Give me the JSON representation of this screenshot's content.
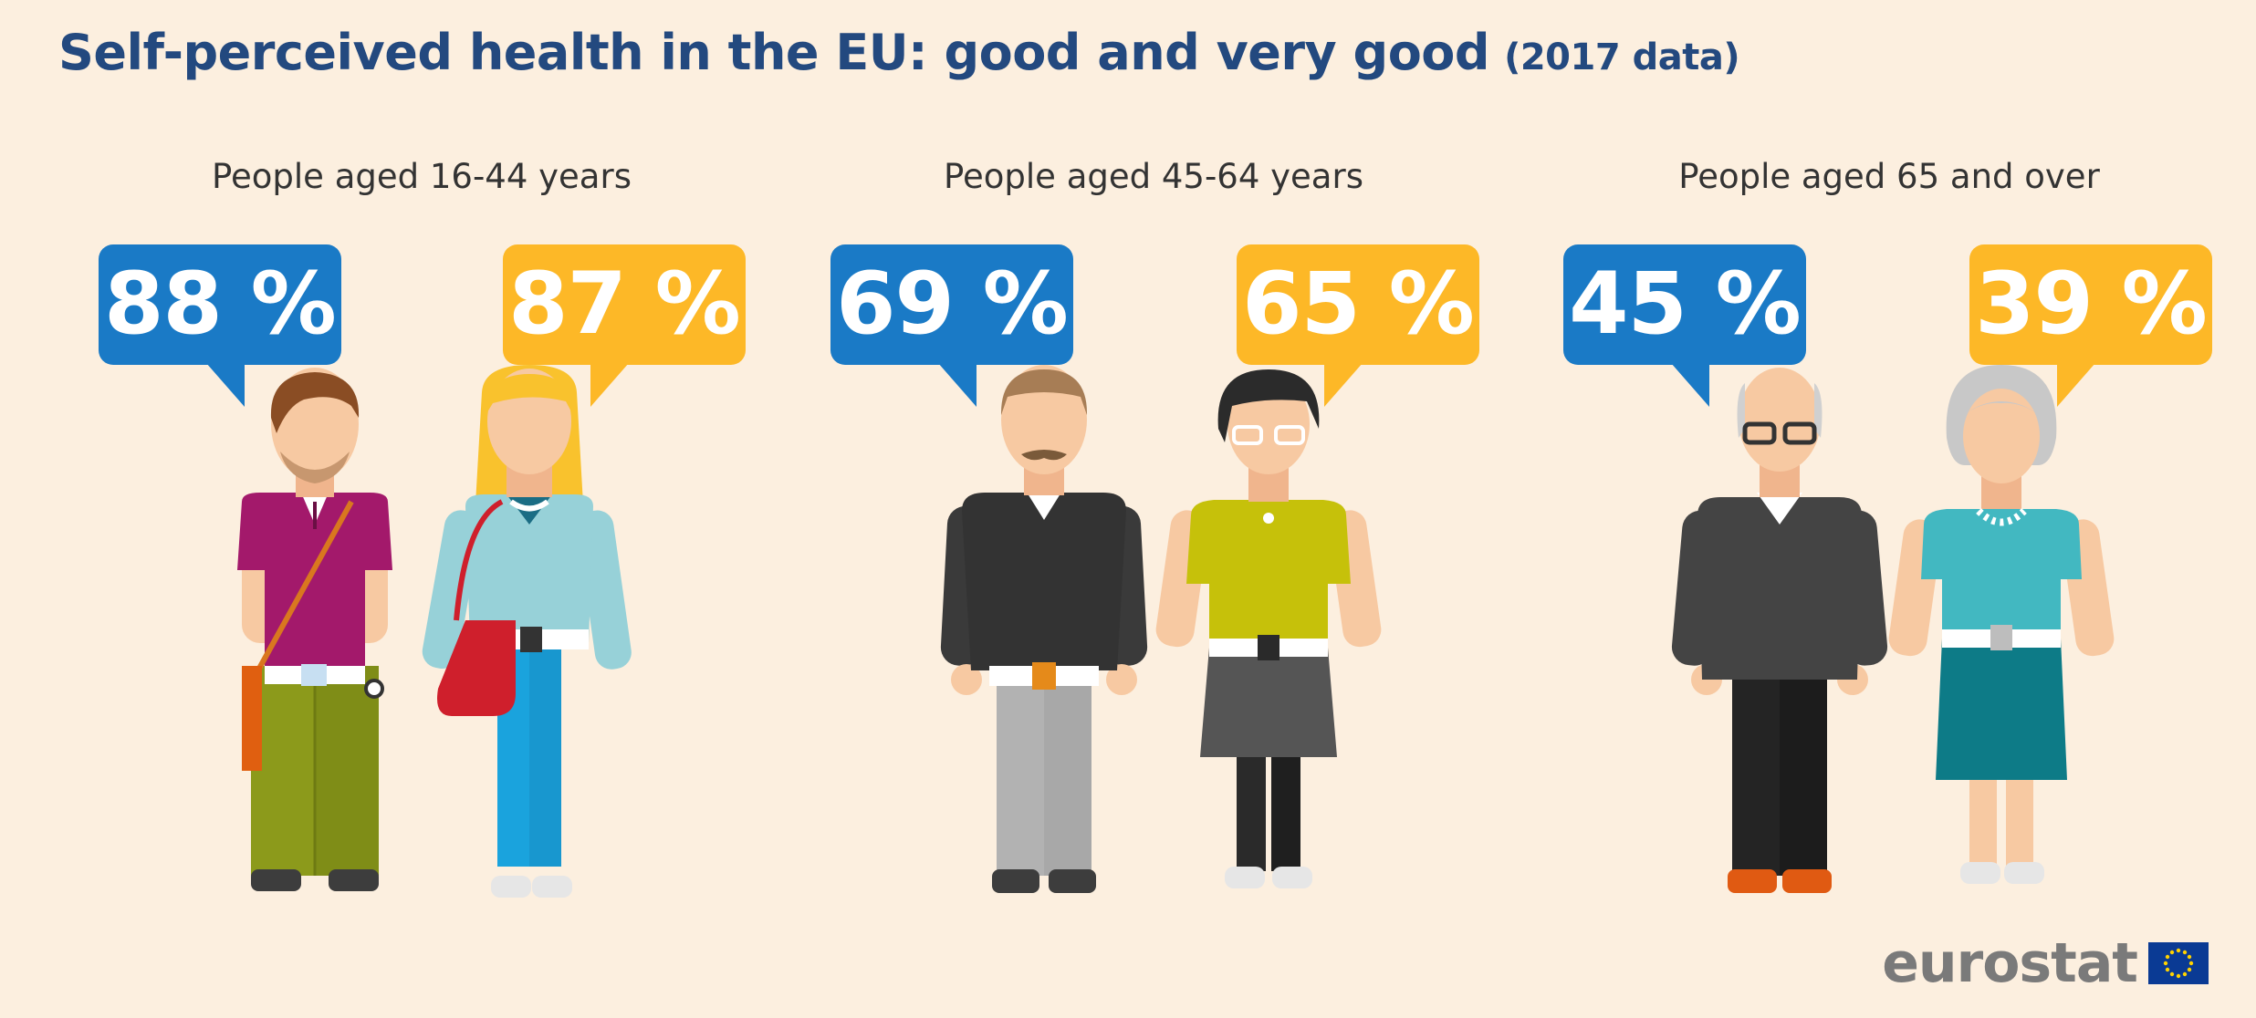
{
  "title": "Self-perceived health in the EU: good and very good",
  "subtitle": "(2017 data)",
  "brand": "eurostat",
  "colors": {
    "male": "#1a7ac6",
    "female": "#fdb827",
    "title": "#23497f",
    "background": "#fcefdf"
  },
  "chart_data": {
    "type": "table",
    "title": "Self-perceived health in the EU: good and very good",
    "subtitle": "(2017 data)",
    "unit": "%",
    "categories": [
      "People aged 16-44 years",
      "People aged 45-64 years",
      "People aged 65 and over"
    ],
    "series": [
      {
        "color": "#1a7ac6",
        "values": [
          88,
          69,
          45
        ]
      },
      {
        "color": "#fdb827",
        "values": [
          87,
          65,
          39
        ]
      }
    ],
    "labels": {
      "male": [
        "88 %",
        "69 %",
        "45 %"
      ],
      "female": [
        "87 %",
        "65 %",
        "39 %"
      ]
    }
  }
}
